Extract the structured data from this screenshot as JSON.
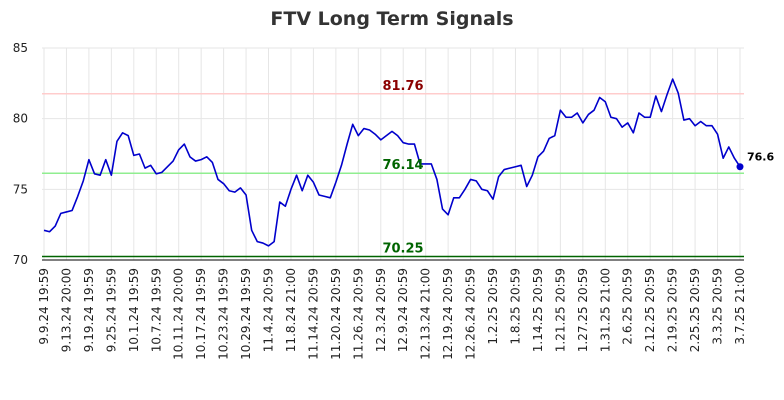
{
  "colors": {
    "price_line": "#0000cc",
    "resistance_line": "#ffcccc",
    "resistance_label": "#8b0000",
    "support_mid_line": "#90ee90",
    "support_low_line": "#006400",
    "support_label": "#006400",
    "grid": "#e6e6e6"
  },
  "chart_data": {
    "type": "line",
    "title": "FTV Long Term Signals",
    "xlabel": "",
    "ylabel": "",
    "ylim": [
      70,
      85
    ],
    "yticks": [
      70,
      75,
      80,
      85
    ],
    "grid": true,
    "x_tick_labels": [
      "9.9.24 19:59",
      "9.13.24 20:00",
      "9.19.24 19:59",
      "9.25.24 19:59",
      "10.1.24 19:59",
      "10.7.24 19:59",
      "10.11.24 20:00",
      "10.17.24 19:59",
      "10.23.24 19:59",
      "10.29.24 19:59",
      "11.4.24 20:59",
      "11.8.24 21:00",
      "11.14.24 20:59",
      "11.20.24 20:59",
      "11.26.24 20:59",
      "12.3.24 20:59",
      "12.9.24 20:59",
      "12.13.24 21:00",
      "12.19.24 20:59",
      "12.26.24 20:59",
      "1.2.25 20:59",
      "1.8.25 20:59",
      "1.14.25 20:59",
      "1.21.25 20:59",
      "1.27.25 20:59",
      "1.31.25 21:00",
      "2.6.25 20:59",
      "2.12.25 20:59",
      "2.19.25 20:59",
      "2.25.25 20:59",
      "3.3.25 20:59",
      "3.7.25 21:00"
    ],
    "horizontal_lines": [
      {
        "value": 81.76,
        "label": "81.76",
        "role": "resistance"
      },
      {
        "value": 76.14,
        "label": "76.14",
        "role": "support_mid"
      },
      {
        "value": 70.25,
        "label": "70.25",
        "role": "support_low"
      }
    ],
    "last_value_label": "76.6",
    "series": [
      {
        "values": [
          72.1,
          72.0,
          72.4,
          73.3,
          73.4,
          73.5,
          74.5,
          75.6,
          77.1,
          76.1,
          76.0,
          77.1,
          76.0,
          78.4,
          79.0,
          78.8,
          77.4,
          77.5,
          76.5,
          76.7,
          76.1,
          76.2,
          76.6,
          77.0,
          77.8,
          78.2,
          77.3,
          77.0,
          77.1,
          77.3,
          76.9,
          75.7,
          75.4,
          74.9,
          74.8,
          75.1,
          74.6,
          72.1,
          71.3,
          71.2,
          71.0,
          71.3,
          74.1,
          73.8,
          75.0,
          76.0,
          74.9,
          76.0,
          75.5,
          74.6,
          74.5,
          74.4,
          75.5,
          76.7,
          78.2,
          79.6,
          78.8,
          79.3,
          79.2,
          78.9,
          78.5,
          78.8,
          79.1,
          78.8,
          78.3,
          78.2,
          78.2,
          76.8,
          76.8,
          76.8,
          75.7,
          73.6,
          73.2,
          74.4,
          74.4,
          75.0,
          75.7,
          75.6,
          75.0,
          74.9,
          74.3,
          75.9,
          76.4,
          76.5,
          76.6,
          76.7,
          75.2,
          76.0,
          77.3,
          77.7,
          78.6,
          78.8,
          80.6,
          80.1,
          80.1,
          80.4,
          79.7,
          80.3,
          80.6,
          81.5,
          81.2,
          80.1,
          80.0,
          79.4,
          79.7,
          79.0,
          80.4,
          80.1,
          80.1,
          81.6,
          80.5,
          81.7,
          82.8,
          81.8,
          79.9,
          80.0,
          79.5,
          79.8,
          79.5,
          79.5,
          78.9,
          77.2,
          78.0,
          77.2,
          76.6
        ]
      }
    ]
  }
}
